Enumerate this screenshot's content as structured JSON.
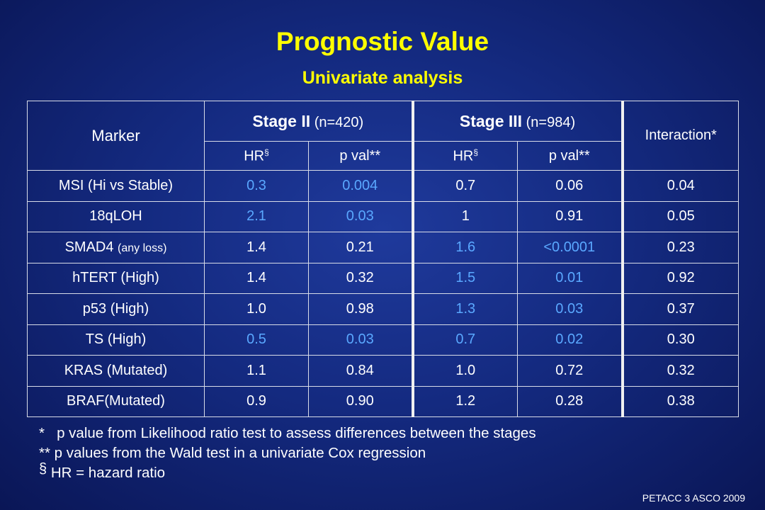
{
  "slide": {
    "title": "Prognostic Value",
    "subtitle": "Univariate analysis",
    "credit": "PETACC 3 ASCO 2009"
  },
  "table": {
    "marker_header": "Marker",
    "stage2": {
      "label": "Stage II",
      "n": "(n=420)"
    },
    "stage3": {
      "label": "Stage III",
      "n": "(n=984)"
    },
    "interaction_header": "Interaction*",
    "hr_label": "HR",
    "hr_sup": "§",
    "pval_label": "p val**",
    "rows": [
      {
        "marker": "MSI (Hi vs Stable)",
        "marker_suffix": "",
        "s2_hr": "0.3",
        "s2_p": "0.004",
        "s3_hr": "0.7",
        "s3_p": "0.06",
        "interaction": "0.04"
      },
      {
        "marker": "18qLOH",
        "marker_suffix": "",
        "s2_hr": "2.1",
        "s2_p": "0.03",
        "s3_hr": "1",
        "s3_p": "0.91",
        "interaction": "0.05"
      },
      {
        "marker": "SMAD4",
        "marker_suffix": "(any loss)",
        "s2_hr": "1.4",
        "s2_p": "0.21",
        "s3_hr": "1.6",
        "s3_p": "<0.0001",
        "interaction": "0.23"
      },
      {
        "marker": "hTERT (High)",
        "marker_suffix": "",
        "s2_hr": "1.4",
        "s2_p": "0.32",
        "s3_hr": "1.5",
        "s3_p": "0.01",
        "interaction": "0.92"
      },
      {
        "marker": "p53 (High)",
        "marker_suffix": "",
        "s2_hr": "1.0",
        "s2_p": "0.98",
        "s3_hr": "1.3",
        "s3_p": "0.03",
        "interaction": "0.37"
      },
      {
        "marker": "TS (High)",
        "marker_suffix": "",
        "s2_hr": "0.5",
        "s2_p": "0.03",
        "s3_hr": "0.7",
        "s3_p": "0.02",
        "interaction": "0.30"
      },
      {
        "marker": "KRAS (Mutated)",
        "marker_suffix": "",
        "s2_hr": "1.1",
        "s2_p": "0.84",
        "s3_hr": "1.0",
        "s3_p": "0.72",
        "interaction": "0.32"
      },
      {
        "marker": "BRAF(Mutated)",
        "marker_suffix": "",
        "s2_hr": "0.9",
        "s2_p": "0.90",
        "s3_hr": "1.2",
        "s3_p": "0.28",
        "interaction": "0.38"
      }
    ]
  },
  "footnotes": {
    "f1_mark": "*",
    "f1_text": "p value from Likelihood ratio test to assess differences between the stages",
    "f2": "** p values from the Wald test in a univariate Cox regression",
    "f3_mark": "§",
    "f3_text": "HR = hazard ratio"
  },
  "colors": {
    "title": "#ffff00",
    "highlight": "#5aa8ff",
    "background": "#142a80"
  }
}
